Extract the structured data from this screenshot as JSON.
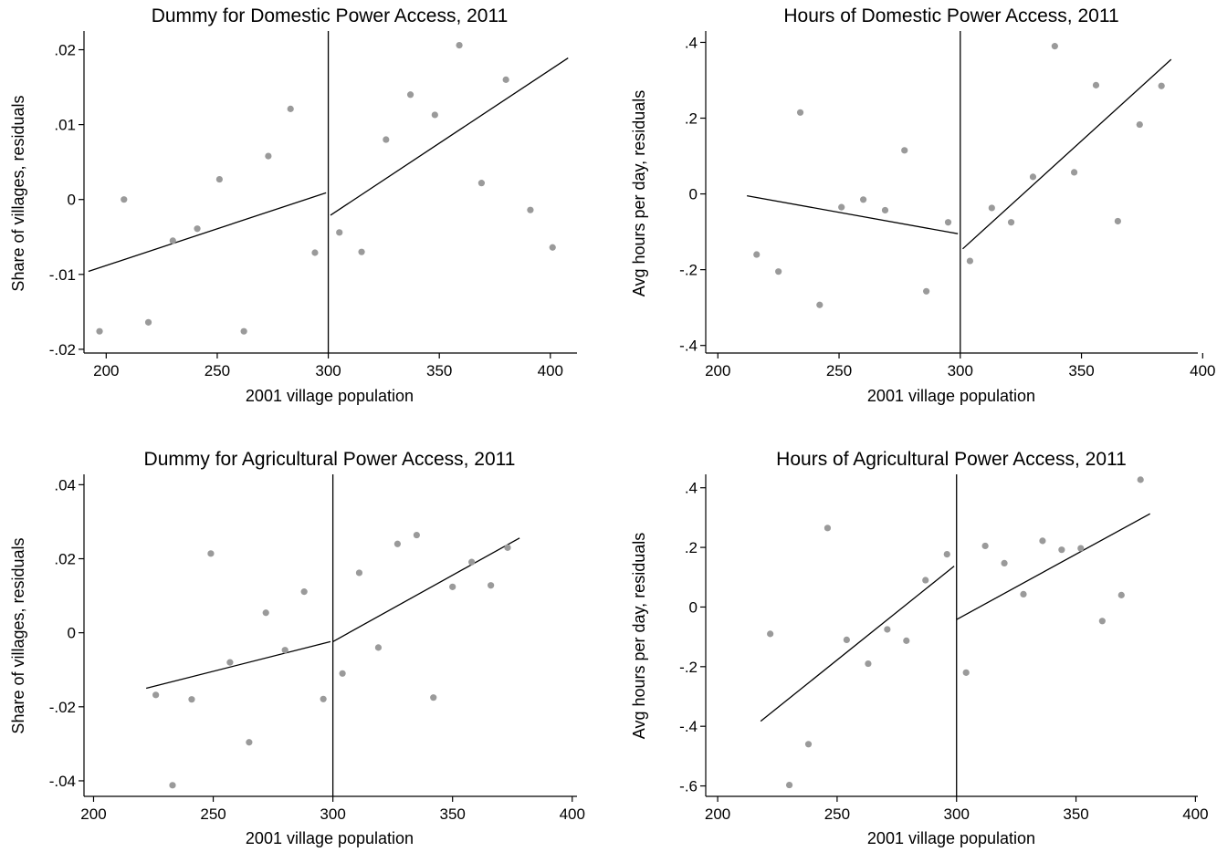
{
  "chart_data": [
    {
      "type": "scatter",
      "title": "Dummy for Domestic Power Access, 2011",
      "xlabel": "2001 village population",
      "ylabel": "Share of villages, residuals",
      "xlim": [
        190,
        412
      ],
      "ylim": [
        -0.0205,
        0.0225
      ],
      "xticks": [
        200,
        250,
        300,
        350,
        400
      ],
      "xtick_labels": [
        "200",
        "250",
        "300",
        "350",
        "400"
      ],
      "yticks": [
        -0.02,
        -0.01,
        0,
        0.01,
        0.02
      ],
      "ytick_labels": [
        "-.02",
        "-.01",
        "0",
        ".01",
        ".02"
      ],
      "cutoff": 300,
      "points": {
        "x": [
          197,
          208,
          219,
          230,
          241,
          251,
          262,
          273,
          283,
          294,
          305,
          315,
          326,
          337,
          348,
          359,
          369,
          380,
          391,
          401
        ],
        "y": [
          -0.0176,
          0.0,
          -0.0164,
          -0.0055,
          -0.0039,
          0.0027,
          -0.0176,
          0.0058,
          0.0121,
          -0.0071,
          -0.0044,
          -0.007,
          0.008,
          0.014,
          0.0113,
          0.0206,
          0.0022,
          0.016,
          -0.0014,
          -0.0064
        ]
      },
      "fit_left": {
        "x": [
          192,
          299
        ],
        "y": [
          -0.0096,
          0.0009
        ]
      },
      "fit_right": {
        "x": [
          301,
          408
        ],
        "y": [
          -0.0021,
          0.0189
        ]
      }
    },
    {
      "type": "scatter",
      "title": "Hours of Domestic Power Access, 2011",
      "xlabel": "2001 village population",
      "ylabel": "Avg hours per day, residuals",
      "xlim": [
        195,
        398
      ],
      "ylim": [
        -0.42,
        0.43
      ],
      "xticks": [
        200,
        250,
        300,
        350,
        400
      ],
      "xtick_labels": [
        "200",
        "250",
        "300",
        "350",
        "400"
      ],
      "yticks": [
        -0.4,
        -0.2,
        0,
        0.2,
        0.4
      ],
      "ytick_labels": [
        "-.4",
        "-.2",
        "0",
        ".2",
        ".4"
      ],
      "cutoff": 300,
      "points": {
        "x": [
          216,
          225,
          234,
          242,
          251,
          260,
          269,
          277,
          286,
          295,
          304,
          313,
          321,
          330,
          339,
          347,
          356,
          365,
          374,
          383
        ],
        "y": [
          -0.16,
          -0.205,
          0.215,
          -0.293,
          -0.035,
          -0.015,
          -0.043,
          0.115,
          -0.257,
          -0.075,
          -0.177,
          -0.037,
          -0.075,
          0.045,
          0.39,
          0.057,
          0.287,
          -0.072,
          0.183,
          0.285
        ]
      },
      "fit_left": {
        "x": [
          212,
          299
        ],
        "y": [
          -0.005,
          -0.105
        ]
      },
      "fit_right": {
        "x": [
          301,
          387
        ],
        "y": [
          -0.145,
          0.355
        ]
      }
    },
    {
      "type": "scatter",
      "title": "Dummy for Agricultural Power Access, 2011",
      "xlabel": "2001 village population",
      "ylabel": "Share of villages, residuals",
      "xlim": [
        196,
        402
      ],
      "ylim": [
        -0.0442,
        0.0428
      ],
      "xticks": [
        200,
        250,
        300,
        350,
        400
      ],
      "xtick_labels": [
        "200",
        "250",
        "300",
        "350",
        "400"
      ],
      "yticks": [
        -0.04,
        -0.02,
        0,
        0.02,
        0.04
      ],
      "ytick_labels": [
        "-.04",
        "-.02",
        "0",
        ".02",
        ".04"
      ],
      "cutoff": 300,
      "points": {
        "x": [
          226,
          233,
          241,
          249,
          257,
          265,
          272,
          280,
          288,
          296,
          304,
          311,
          319,
          327,
          335,
          342,
          350,
          358,
          366,
          373
        ],
        "y": [
          -0.0168,
          -0.0412,
          -0.018,
          0.0214,
          -0.008,
          -0.0296,
          0.0054,
          -0.0047,
          0.0111,
          -0.0179,
          -0.011,
          0.0162,
          -0.004,
          0.024,
          0.0264,
          -0.0175,
          0.0124,
          0.0191,
          0.0128,
          0.023
        ]
      },
      "fit_left": {
        "x": [
          222,
          299
        ],
        "y": [
          -0.015,
          -0.0024
        ]
      },
      "fit_right": {
        "x": [
          300,
          378
        ],
        "y": [
          -0.0024,
          0.0256
        ]
      }
    },
    {
      "type": "scatter",
      "title": "Hours of Agricultural Power Access, 2011",
      "xlabel": "2001 village population",
      "ylabel": "Avg hours per day, residuals",
      "xlim": [
        195,
        401
      ],
      "ylim": [
        -0.635,
        0.445
      ],
      "xticks": [
        200,
        250,
        300,
        350,
        400
      ],
      "xtick_labels": [
        "200",
        "250",
        "300",
        "350",
        "400"
      ],
      "yticks": [
        -0.6,
        -0.4,
        -0.2,
        0,
        0.2,
        0.4
      ],
      "ytick_labels": [
        "-.6",
        "-.4",
        "-.2",
        "0",
        ".2",
        ".4"
      ],
      "cutoff": 300,
      "points": {
        "x": [
          222,
          230,
          238,
          246,
          254,
          263,
          271,
          279,
          287,
          296,
          304,
          312,
          320,
          328,
          336,
          344,
          352,
          361,
          369,
          377
        ],
        "y": [
          -0.09,
          -0.597,
          -0.46,
          0.265,
          -0.11,
          -0.19,
          -0.075,
          -0.113,
          0.09,
          0.177,
          -0.22,
          0.205,
          0.147,
          0.043,
          0.222,
          0.192,
          0.197,
          -0.047,
          0.04,
          0.427
        ]
      },
      "fit_left": {
        "x": [
          218,
          299
        ],
        "y": [
          -0.383,
          0.137
        ]
      },
      "fit_right": {
        "x": [
          300,
          381
        ],
        "y": [
          -0.042,
          0.313
        ]
      }
    }
  ]
}
